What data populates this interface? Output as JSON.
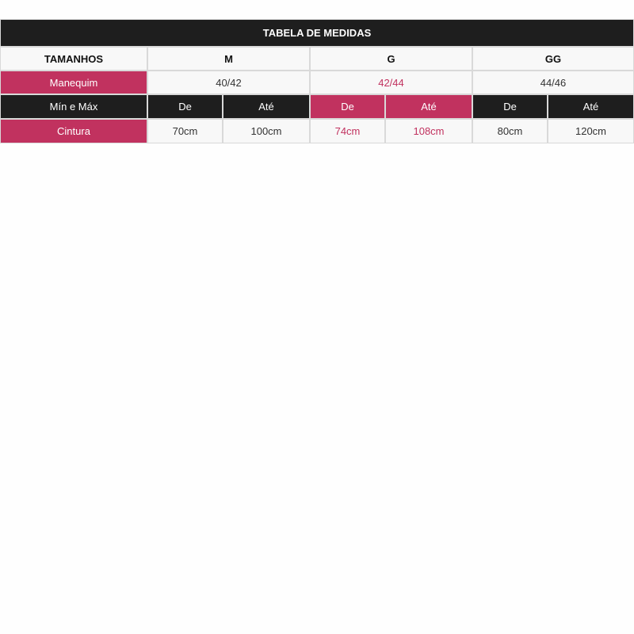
{
  "title": "TABELA DE MEDIDAS",
  "sizes_header": "TAMANHOS",
  "sizes": [
    "M",
    "G",
    "GG"
  ],
  "mannequin_label": "Manequim",
  "mannequin": [
    "40/42",
    "42/44",
    "44/46"
  ],
  "range_label": "Mín e Máx",
  "from_label": "De",
  "to_label": "Até",
  "waist_label": "Cintura",
  "waist": [
    {
      "from": "70cm",
      "to": "100cm"
    },
    {
      "from": "74cm",
      "to": "108cm"
    },
    {
      "from": "80cm",
      "to": "120cm"
    }
  ],
  "colors": {
    "dark": "#1e1e1e",
    "accent": "#c1325f",
    "light": "#f8f8f8"
  }
}
